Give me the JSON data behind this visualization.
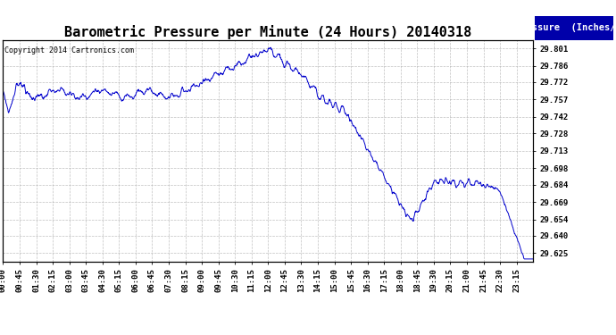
{
  "title": "Barometric Pressure per Minute (24 Hours) 20140318",
  "copyright": "Copyright 2014 Cartronics.com",
  "legend_label": "Pressure  (Inches/Hg)",
  "line_color": "#0000cc",
  "background_color": "#ffffff",
  "grid_color": "#b0b0b0",
  "yticks": [
    29.625,
    29.64,
    29.654,
    29.669,
    29.684,
    29.698,
    29.713,
    29.728,
    29.742,
    29.757,
    29.772,
    29.786,
    29.801
  ],
  "ytick_labels": [
    "29.625",
    "29.640",
    "29.654",
    "29.669",
    "29.684",
    "29.698",
    "29.713",
    "29.728",
    "29.742",
    "29.757",
    "29.772",
    "29.786",
    "29.801"
  ],
  "ylim": [
    29.618,
    29.808
  ],
  "xtick_labels": [
    "00:00",
    "00:45",
    "01:30",
    "02:15",
    "03:00",
    "03:45",
    "04:30",
    "05:15",
    "06:00",
    "06:45",
    "07:30",
    "08:15",
    "09:00",
    "09:45",
    "10:30",
    "11:15",
    "12:00",
    "12:45",
    "13:30",
    "14:15",
    "15:00",
    "15:45",
    "16:30",
    "17:15",
    "18:00",
    "18:45",
    "19:30",
    "20:15",
    "21:00",
    "21:45",
    "22:30",
    "23:15"
  ],
  "title_fontsize": 11,
  "tick_fontsize": 6.5,
  "legend_fontsize": 7.5,
  "copyright_fontsize": 6
}
